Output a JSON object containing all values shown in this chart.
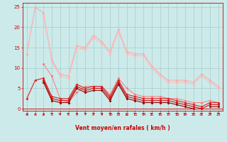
{
  "bg_color": "#cceaea",
  "grid_color": "#aacccc",
  "xlabel": "Vent moyen/en rafales ( km/h )",
  "x": [
    0,
    1,
    2,
    3,
    4,
    5,
    6,
    7,
    8,
    9,
    10,
    11,
    12,
    13,
    14,
    15,
    16,
    17,
    18,
    19,
    20,
    21,
    22,
    23
  ],
  "ylim": [
    -0.5,
    26
  ],
  "yticks": [
    0,
    5,
    10,
    15,
    20,
    25
  ],
  "series": [
    {
      "color": "#ffaaaa",
      "linewidth": 0.8,
      "marker": "^",
      "markersize": 2,
      "values": [
        13.5,
        25.0,
        23.5,
        12.0,
        8.5,
        8.0,
        15.5,
        15.0,
        18.0,
        16.5,
        14.0,
        19.5,
        14.0,
        13.5,
        13.5,
        10.5,
        8.5,
        7.0,
        7.0,
        7.0,
        6.5,
        8.5,
        7.0,
        5.5
      ]
    },
    {
      "color": "#ffbbbb",
      "linewidth": 0.8,
      "marker": "^",
      "markersize": 2,
      "values": [
        null,
        null,
        23.0,
        11.5,
        8.0,
        7.5,
        15.0,
        14.5,
        17.5,
        16.0,
        13.5,
        19.0,
        13.5,
        13.0,
        13.0,
        10.0,
        8.0,
        6.5,
        6.5,
        6.5,
        6.0,
        8.0,
        6.5,
        5.0
      ]
    },
    {
      "color": "#ff7777",
      "linewidth": 0.7,
      "marker": "D",
      "markersize": 1.5,
      "values": [
        null,
        null,
        11.0,
        8.0,
        2.5,
        1.5,
        4.0,
        5.5,
        5.5,
        5.5,
        3.5,
        7.5,
        5.0,
        3.5,
        3.0,
        3.0,
        3.0,
        2.5,
        2.5,
        2.0,
        1.5,
        1.5,
        2.0,
        1.5
      ]
    },
    {
      "color": "#dd2222",
      "linewidth": 0.8,
      "marker": "D",
      "markersize": 1.5,
      "values": [
        2.5,
        7.0,
        7.5,
        3.0,
        2.5,
        2.5,
        6.0,
        5.0,
        5.5,
        5.5,
        3.0,
        7.0,
        3.5,
        3.0,
        2.5,
        2.5,
        2.5,
        2.5,
        2.0,
        1.5,
        1.0,
        0.5,
        1.5,
        1.5
      ]
    },
    {
      "color": "#cc1111",
      "linewidth": 0.8,
      "marker": "D",
      "markersize": 1.5,
      "values": [
        null,
        null,
        7.0,
        2.5,
        2.0,
        2.0,
        5.5,
        4.5,
        5.0,
        5.0,
        2.5,
        6.5,
        3.0,
        2.5,
        2.0,
        2.0,
        2.0,
        2.0,
        1.5,
        1.0,
        0.5,
        0.0,
        1.0,
        1.0
      ]
    },
    {
      "color": "#990000",
      "linewidth": 0.8,
      "marker": "D",
      "markersize": 1.5,
      "values": [
        null,
        null,
        6.5,
        2.0,
        1.5,
        1.5,
        5.0,
        4.0,
        4.5,
        4.5,
        2.0,
        6.0,
        2.5,
        2.0,
        1.5,
        1.5,
        1.5,
        1.5,
        1.0,
        0.5,
        0.0,
        null,
        0.5,
        0.5
      ]
    }
  ],
  "wind_dirs": [
    180,
    180,
    180,
    225,
    225,
    225,
    270,
    270,
    270,
    270,
    270,
    270,
    180,
    225,
    225,
    225,
    225,
    225,
    225,
    225,
    225,
    225,
    270,
    270
  ],
  "arrow_color": "#cc0000"
}
